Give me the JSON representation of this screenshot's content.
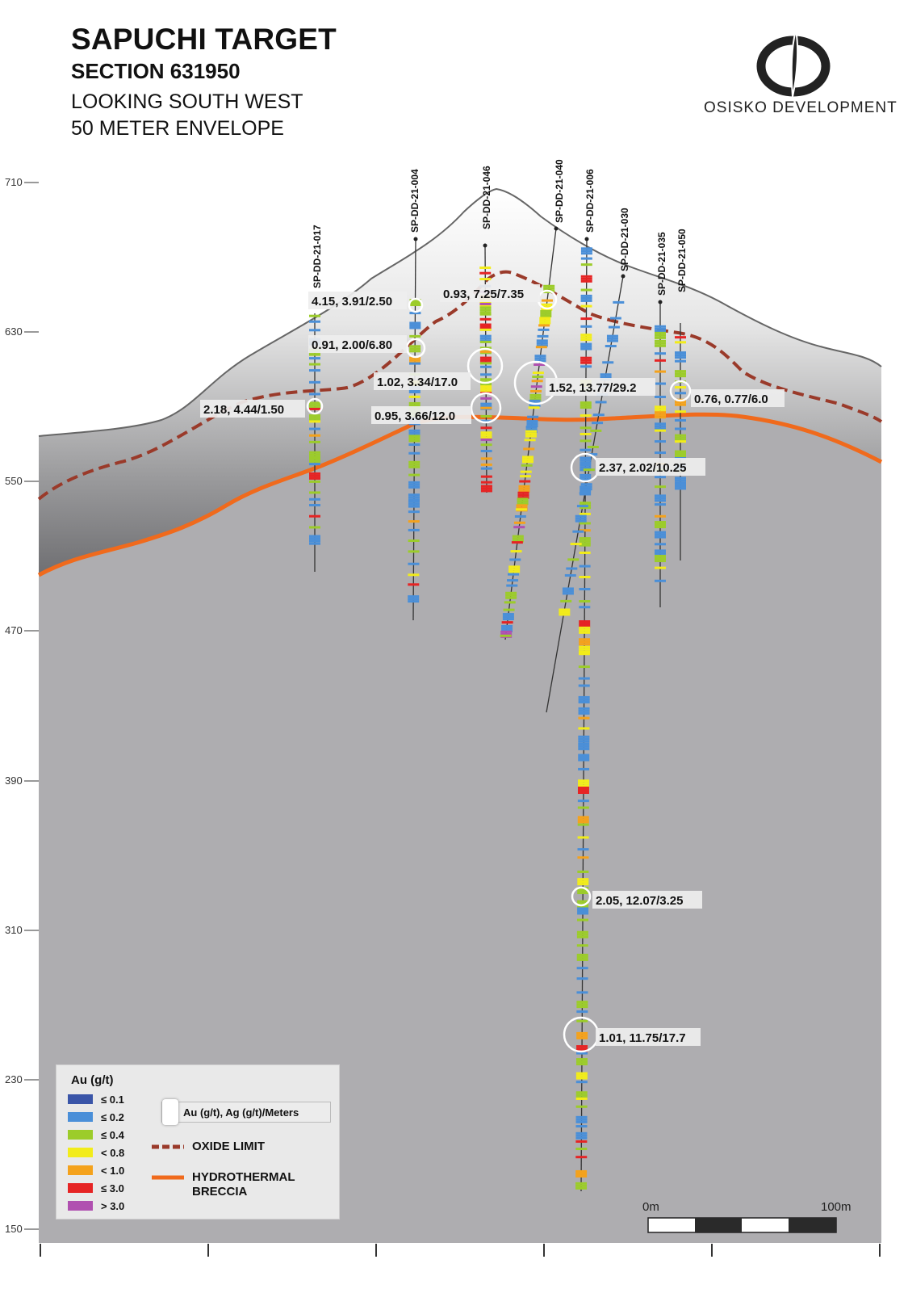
{
  "header": {
    "title": "SAPUCHI TARGET",
    "section": "SECTION 631950",
    "view": "LOOKING SOUTH WEST",
    "envelope": "50 METER ENVELOPE"
  },
  "logo": {
    "text": "OSISKO DEVELOPMENT"
  },
  "axis": {
    "elevations": [
      "710",
      "630",
      "550",
      "470",
      "390",
      "310",
      "230",
      "150"
    ]
  },
  "drill_holes": [
    "SP-DD-21-017",
    "SP-DD-21-004",
    "SP-DD-21-046",
    "SP-DD-21-040",
    "SP-DD-21-006",
    "SP-DD-21-030",
    "SP-DD-21-035",
    "SP-DD-21-050"
  ],
  "intercepts": [
    "4.15, 3.91/2.50",
    "0.91, 2.00/6.80",
    "2.18, 4.44/1.50",
    "0.93, 7.25/7.35",
    "1.02, 3.34/17.0",
    "0.95, 3.66/12.0",
    "1.52, 13.77/29.2",
    "2.37, 2.02/10.25",
    "0.76, 0.77/6.0",
    "2.05, 12.07/3.25",
    "1.01, 11.75/17.7"
  ],
  "legend": {
    "title": "Au (g/t)",
    "classes": [
      {
        "label": "≤ 0.1",
        "color": "#3a55a8"
      },
      {
        "label": "≤ 0.2",
        "color": "#4a8fd8"
      },
      {
        "label": "≤ 0.4",
        "color": "#9ccc2a"
      },
      {
        "label": "< 0.8",
        "color": "#f2ec1a"
      },
      {
        "label": "< 1.0",
        "color": "#f4a21c"
      },
      {
        "label": "≤ 3.0",
        "color": "#e62424"
      },
      {
        "label": "> 3.0",
        "color": "#b050b0"
      }
    ],
    "key_label": "Au (g/t), Ag (g/t)/Meters",
    "oxide_label": "OXIDE LIMIT",
    "breccia_label_1": "HYDROTHERMAL",
    "breccia_label_2": "BRECCIA"
  },
  "scale": {
    "start": "0m",
    "end": "100m"
  },
  "colors": {
    "oxide": "#9a3a2a",
    "breccia": "#f06a1c",
    "host_rock": "#aeadb0"
  }
}
